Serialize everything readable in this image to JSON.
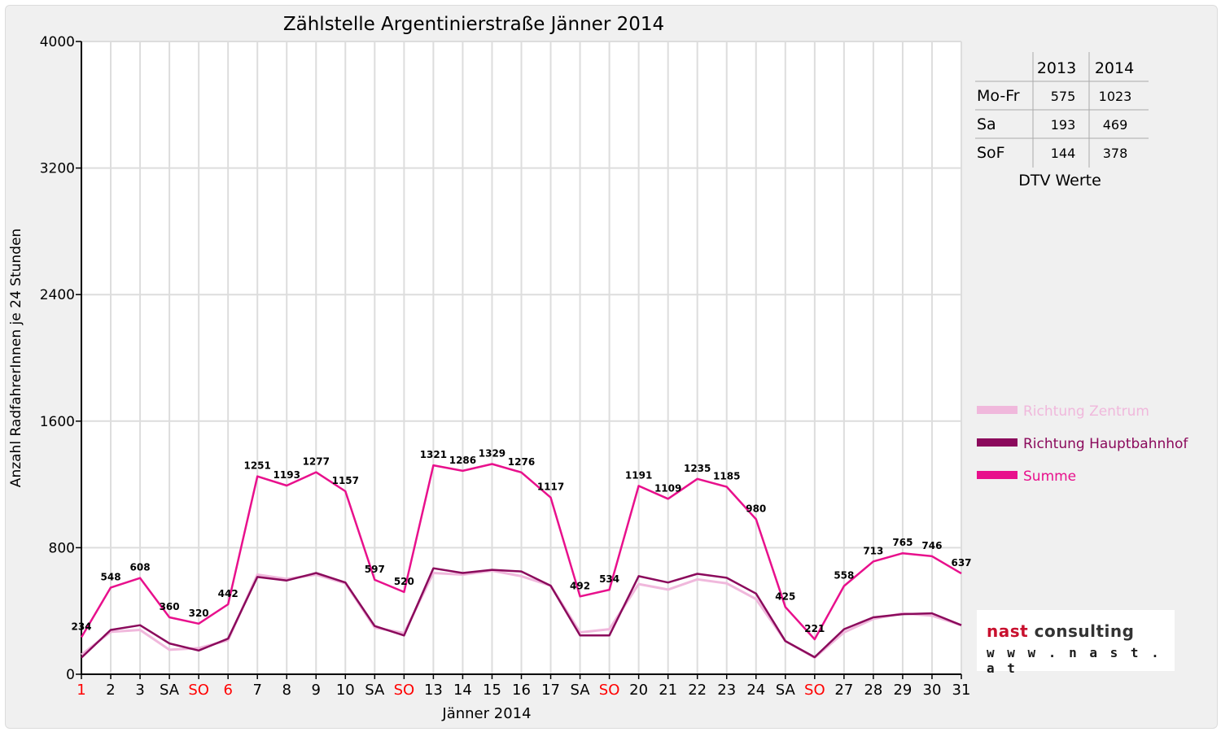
{
  "chart_data": {
    "type": "line",
    "title": "Zählstelle Argentinierstraße Jänner 2014",
    "xlabel": "Jänner 2014",
    "ylabel": "Anzahl RadfahrerInnen je 24 Stunden",
    "ylim": [
      0,
      4000
    ],
    "yticks": [
      "0",
      "800",
      "1600",
      "2400",
      "3200",
      "4000"
    ],
    "grid": true,
    "legend_position": "right",
    "categories": [
      "1",
      "2",
      "3",
      "SA",
      "SO",
      "6",
      "7",
      "8",
      "9",
      "10",
      "SA",
      "SO",
      "13",
      "14",
      "15",
      "16",
      "17",
      "SA",
      "SO",
      "20",
      "21",
      "22",
      "23",
      "24",
      "SA",
      "SO",
      "27",
      "28",
      "29",
      "30",
      "31"
    ],
    "holiday_flags": [
      1,
      0,
      0,
      0,
      1,
      1,
      0,
      0,
      0,
      0,
      0,
      1,
      0,
      0,
      0,
      0,
      0,
      0,
      1,
      0,
      0,
      0,
      0,
      0,
      0,
      1,
      0,
      0,
      0,
      0,
      0
    ],
    "series": [
      {
        "name": "Richtung Zentrum",
        "color": "#f0b8dc",
        "values": [
          124,
          268,
          280,
          155,
          165,
          215,
          630,
          602,
          630,
          575,
          295,
          260,
          640,
          630,
          655,
          620,
          560,
          265,
          285,
          570,
          535,
          600,
          575,
          475,
          210,
          105,
          265,
          350,
          385,
          370,
          310
        ]
      },
      {
        "name": "Richtung Hauptbahnhof",
        "color": "#8b0a5c",
        "values": [
          105,
          280,
          310,
          195,
          150,
          225,
          615,
          593,
          640,
          580,
          305,
          245,
          670,
          640,
          660,
          650,
          560,
          245,
          245,
          620,
          580,
          635,
          610,
          510,
          210,
          108,
          285,
          360,
          380,
          385,
          310
        ]
      },
      {
        "name": "Summe",
        "color": "#e8108c",
        "values": [
          234,
          548,
          608,
          360,
          320,
          442,
          1251,
          1193,
          1277,
          1157,
          597,
          520,
          1321,
          1286,
          1329,
          1276,
          1117,
          492,
          534,
          1191,
          1109,
          1235,
          1185,
          980,
          425,
          221,
          558,
          713,
          765,
          746,
          637
        ]
      }
    ],
    "data_labels": [
      "234",
      "548",
      "608",
      "360",
      "320",
      "442",
      "1251",
      "1193",
      "1277",
      "1157",
      "597",
      "520",
      "1321",
      "1286",
      "1329",
      "1276",
      "1117",
      "492",
      "534",
      "1191",
      "1109",
      "1235",
      "1185",
      "980",
      "425",
      "221",
      "558",
      "713",
      "765",
      "746",
      "637"
    ]
  },
  "table": {
    "headers": [
      "",
      "2013",
      "2014"
    ],
    "rows": [
      {
        "label": "Mo-Fr",
        "y2013": "575",
        "y2014": "1023"
      },
      {
        "label": "Sa",
        "y2013": "193",
        "y2014": "469"
      },
      {
        "label": "SoF",
        "y2013": "144",
        "y2014": "378"
      }
    ],
    "caption": "DTV Werte"
  },
  "logo": {
    "part1": "nast",
    "part2": " consulting",
    "url": "w w w . n a s t . a t",
    "color1": "#c8102e",
    "color2": "#333333"
  },
  "colors": {
    "holiday": "#ff0000",
    "axis": "#000000",
    "grid": "#dddddd"
  }
}
